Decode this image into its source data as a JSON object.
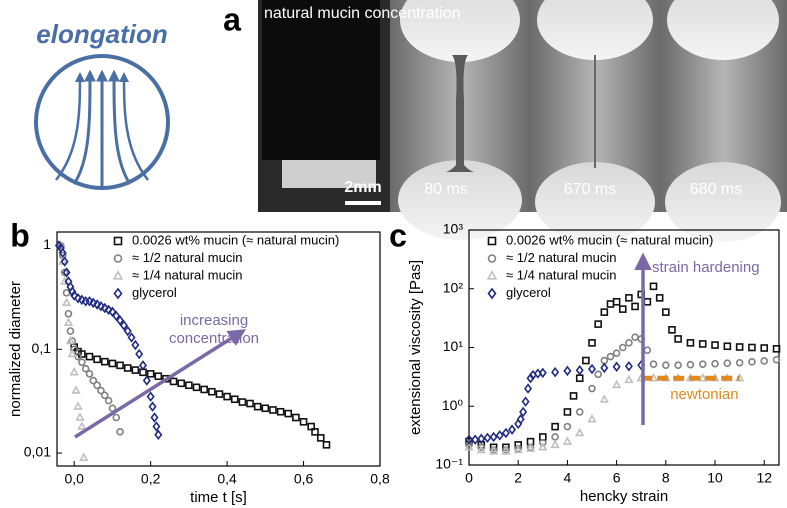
{
  "figure": {
    "elongation": "elongation",
    "panel_a": {
      "label": "a",
      "title": "natural mucin concentration",
      "scale_bar": "2mm",
      "frames": [
        "80 ms",
        "670 ms",
        "680 ms"
      ]
    }
  },
  "chart_data": [
    {
      "type": "scatter",
      "panel_label": "b",
      "x_label": "time t [s]",
      "y_label": "normalized diameter",
      "log_y": true,
      "xlim": [
        -0.045,
        0.8
      ],
      "ylim": [
        0.0075,
        1.35
      ],
      "xticks": [
        {
          "value": 0,
          "label": "0,0"
        },
        {
          "value": 0.2,
          "label": "0,2"
        },
        {
          "value": 0.4,
          "label": "0,4"
        },
        {
          "value": 0.6,
          "label": "0,6"
        },
        {
          "value": 0.8,
          "label": "0,8"
        }
      ],
      "yticks": [
        {
          "value": 0.01,
          "label": "0,01"
        },
        {
          "value": 0.1,
          "label": "0,1"
        },
        1
      ],
      "annotation": [
        "increasing",
        "concentration"
      ],
      "annotation_color": "#7b68a6",
      "series": [
        {
          "name": "0.0026 wt% mucin (≈ natural mucin)",
          "color": "#111111",
          "marker": "square",
          "x": [
            0.0,
            0.01,
            0.02,
            0.04,
            0.06,
            0.08,
            0.1,
            0.12,
            0.14,
            0.16,
            0.18,
            0.2,
            0.22,
            0.24,
            0.26,
            0.28,
            0.3,
            0.32,
            0.34,
            0.36,
            0.38,
            0.4,
            0.42,
            0.44,
            0.46,
            0.48,
            0.5,
            0.52,
            0.54,
            0.56,
            0.58,
            0.6,
            0.62,
            0.63,
            0.645,
            0.66
          ],
          "values": [
            0.105,
            0.095,
            0.09,
            0.085,
            0.08,
            0.076,
            0.073,
            0.07,
            0.066,
            0.063,
            0.06,
            0.058,
            0.055,
            0.052,
            0.049,
            0.047,
            0.045,
            0.043,
            0.041,
            0.039,
            0.037,
            0.035,
            0.033,
            0.031,
            0.03,
            0.028,
            0.027,
            0.026,
            0.025,
            0.024,
            0.022,
            0.02,
            0.018,
            0.016,
            0.014,
            0.012
          ]
        },
        {
          "name": "≈ 1/2 natural mucin",
          "color": "#808080",
          "marker": "circle",
          "x": [
            -0.035,
            -0.03,
            -0.025,
            -0.02,
            -0.015,
            -0.01,
            -0.005,
            0,
            0.01,
            0.02,
            0.03,
            0.04,
            0.05,
            0.06,
            0.07,
            0.08,
            0.09,
            0.1,
            0.11,
            0.12
          ],
          "values": [
            1,
            0.8,
            0.55,
            0.35,
            0.22,
            0.15,
            0.12,
            0.1,
            0.085,
            0.075,
            0.065,
            0.058,
            0.05,
            0.045,
            0.04,
            0.036,
            0.032,
            0.027,
            0.022,
            0.016
          ]
        },
        {
          "name": "≈ 1/4 natural mucin",
          "color": "#bfbfbf",
          "marker": "triangle",
          "x": [
            -0.035,
            -0.03,
            -0.025,
            -0.02,
            -0.015,
            -0.01,
            -0.005,
            0,
            0.005,
            0.01,
            0.015,
            0.02,
            0.025
          ],
          "values": [
            1,
            0.7,
            0.45,
            0.28,
            0.18,
            0.12,
            0.09,
            0.06,
            0.04,
            0.028,
            0.022,
            0.018,
            0.009
          ]
        },
        {
          "name": "glycerol",
          "color": "#1f2a80",
          "marker": "diamond",
          "x": [
            -0.04,
            -0.035,
            -0.03,
            -0.025,
            -0.02,
            -0.015,
            -0.01,
            -0.005,
            0,
            0.01,
            0.02,
            0.03,
            0.04,
            0.05,
            0.06,
            0.07,
            0.08,
            0.09,
            0.1,
            0.11,
            0.12,
            0.13,
            0.14,
            0.15,
            0.16,
            0.17,
            0.18,
            0.19,
            0.2,
            0.205,
            0.21,
            0.215,
            0.22
          ],
          "values": [
            1,
            0.95,
            0.85,
            0.7,
            0.55,
            0.45,
            0.4,
            0.36,
            0.33,
            0.31,
            0.3,
            0.29,
            0.29,
            0.28,
            0.27,
            0.26,
            0.25,
            0.24,
            0.23,
            0.21,
            0.19,
            0.17,
            0.15,
            0.13,
            0.11,
            0.09,
            0.07,
            0.05,
            0.035,
            0.028,
            0.022,
            0.018,
            0.015
          ]
        }
      ]
    },
    {
      "type": "scatter",
      "panel_label": "c",
      "x_label": "hencky strain",
      "y_label": "extensional viscosity [Pas]",
      "log_y": true,
      "xlim": [
        0,
        12.6
      ],
      "ylim": [
        0.1,
        1000
      ],
      "xticks": [
        0,
        2,
        4,
        6,
        8,
        10,
        12
      ],
      "yticks": [
        {
          "value": 0.1,
          "label": "10⁻¹"
        },
        {
          "value": 1,
          "label": "10⁰"
        },
        {
          "value": 10,
          "label": "10¹"
        },
        {
          "value": 100,
          "label": "10²"
        },
        {
          "value": 1000,
          "label": "10³"
        }
      ],
      "annotation": [
        "strain hardening"
      ],
      "annotation_color": "#7b68a6",
      "newtonian": {
        "label": "newtonian",
        "y": 3,
        "x": [
          7,
          11
        ],
        "color": "#e08a1e"
      },
      "series": [
        {
          "name": "0.0026 wt% mucin (≈ natural mucin)",
          "color": "#111111",
          "marker": "square",
          "x": [
            0,
            0.5,
            1,
            1.5,
            2,
            2.5,
            3,
            3.5,
            4,
            4.25,
            4.5,
            4.75,
            5,
            5.25,
            5.5,
            5.75,
            6,
            6.25,
            6.5,
            6.75,
            7,
            7.25,
            7.5,
            7.75,
            8,
            8.25,
            8.5,
            9,
            9.5,
            10,
            10.5,
            11,
            11.5,
            12,
            12.5
          ],
          "values": [
            0.25,
            0.22,
            0.2,
            0.2,
            0.22,
            0.25,
            0.3,
            0.45,
            0.8,
            1.5,
            3,
            6,
            12,
            25,
            40,
            55,
            60,
            45,
            70,
            50,
            80,
            60,
            110,
            70,
            40,
            20,
            14,
            12,
            11.5,
            11,
            10.5,
            10.2,
            10,
            9.8,
            9.5
          ]
        },
        {
          "name": "≈ 1/2 natural mucin",
          "color": "#808080",
          "marker": "circle",
          "x": [
            0,
            0.5,
            1,
            1.5,
            2,
            2.5,
            3,
            3.5,
            4,
            4.5,
            5,
            5.25,
            5.5,
            5.75,
            6,
            6.25,
            6.5,
            6.75,
            7,
            7.25,
            7.5,
            8,
            8.5,
            9,
            9.5,
            10,
            10.5,
            11,
            11.5,
            12,
            12.5
          ],
          "values": [
            0.22,
            0.2,
            0.18,
            0.18,
            0.19,
            0.2,
            0.24,
            0.3,
            0.45,
            0.8,
            2,
            3.5,
            6,
            7,
            8,
            10,
            12,
            15,
            14,
            9,
            5.2,
            5,
            5,
            5.1,
            5.2,
            5.3,
            5.4,
            5.5,
            5.7,
            5.9,
            6.2
          ]
        },
        {
          "name": "≈ 1/4 natural mucin",
          "color": "#bfbfbf",
          "marker": "triangle",
          "x": [
            0,
            0.5,
            1,
            1.5,
            2,
            2.5,
            3,
            3.5,
            4,
            4.5,
            5,
            5.5,
            6,
            6.5,
            7,
            7.5,
            8,
            8.5,
            9,
            9.5,
            10,
            10.5,
            11
          ],
          "values": [
            0.2,
            0.18,
            0.17,
            0.17,
            0.18,
            0.19,
            0.2,
            0.22,
            0.25,
            0.35,
            0.6,
            1.3,
            2.3,
            2.8,
            3,
            3,
            3,
            3,
            3,
            3,
            3,
            3,
            3
          ]
        },
        {
          "name": "glycerol",
          "color": "#1f2a80",
          "marker": "diamond",
          "x": [
            0,
            0.25,
            0.5,
            0.75,
            1,
            1.25,
            1.5,
            1.75,
            2,
            2.1,
            2.2,
            2.3,
            2.4,
            2.5,
            2.6,
            2.8,
            3,
            3.5,
            4,
            4.5,
            5,
            5.5,
            6,
            6.5,
            7
          ],
          "values": [
            0.27,
            0.27,
            0.28,
            0.29,
            0.3,
            0.32,
            0.35,
            0.4,
            0.5,
            0.6,
            0.8,
            1.2,
            2,
            3,
            3.4,
            3.6,
            3.7,
            3.8,
            4,
            4.1,
            4.3,
            4.5,
            4.7,
            4.8,
            5
          ]
        }
      ]
    }
  ]
}
